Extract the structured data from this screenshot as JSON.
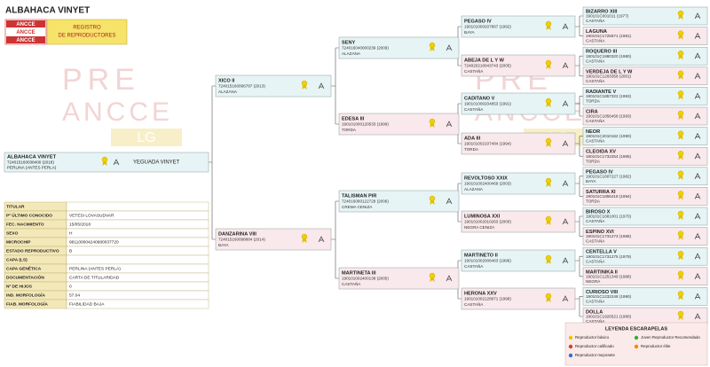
{
  "header": {
    "title": "ALBAHACA VINYET",
    "logo_lines": [
      "ANCCE",
      "ANCCE",
      "ANCCE"
    ],
    "registry_lines": [
      "REGISTRO",
      "DE REPRODUCTORES"
    ]
  },
  "watermark": {
    "line1": "PRE",
    "line2": "ANCCE",
    "line3": "LG"
  },
  "pedigree": {
    "subject": {
      "name": "ALBAHACA VINYET",
      "code": "724015160038400 (2018)",
      "color": "PERLINA (ANTES PERLA)",
      "breeder": "YEGUADA VINYET"
    },
    "gen1": [
      {
        "name": "XICO II",
        "code": "724015160096787 (2013)",
        "color": "ALAZANA"
      },
      {
        "name": "DANZARINA VIII",
        "code": "724015160098884 (2014)",
        "color": "BAYA"
      }
    ],
    "gen2": [
      {
        "name": "SENY",
        "code": "724016040000239 (2009)",
        "color": "ALAZANA"
      },
      {
        "name": "EDESA III",
        "code": "190101000120533 (1999)",
        "color": "TORDA"
      },
      {
        "name": "TALISMAN PIR",
        "code": "724016080122728 (2006)",
        "color": "CREMA CENIZA"
      },
      {
        "name": "MARTINETA III",
        "code": "190101002400138 (2005)",
        "color": "CASTAÑA"
      }
    ],
    "gen3": [
      {
        "name": "PEGASO IV",
        "code": "190101000207867 (1992)",
        "color": "BAYA"
      },
      {
        "name": "ABEJA DE L Y W",
        "code": "724020210043743 (2005)",
        "color": "CASTAÑA"
      },
      {
        "name": "CADITANO V",
        "code": "190101000204853 (1991)",
        "color": "CASTAÑA"
      },
      {
        "name": "ADA III",
        "code": "190101002107484 (1994)",
        "color": "TORDA"
      },
      {
        "name": "REVOLTOSO XXIX",
        "code": "190101002400469 (2003)",
        "color": "ALAZANA"
      },
      {
        "name": "LUMINOSA XXI",
        "code": "190101002010263 (2000)",
        "color": "NEGRA CENIZA"
      },
      {
        "name": "MARTINETO II",
        "code": "190101002006463 (1996)",
        "color": "CASTAÑA"
      },
      {
        "name": "HERONA XXV",
        "code": "190101002128971 (1998)",
        "color": "CASTAÑA"
      }
    ],
    "gen4": [
      {
        "name": "BIZARRO XIII",
        "code": "190101C001011 (1977)",
        "color": "CASTAÑA"
      },
      {
        "name": "LAGUNA",
        "code": "190101C1725571 (1981)",
        "color": "CASTAÑA"
      },
      {
        "name": "ROQUERO III",
        "code": "190101C1880320 (1980)",
        "color": "CASTAÑA"
      },
      {
        "name": "VERDEJA DE L Y W",
        "code": "190101C1203358 (2001)",
        "color": "CASTAÑA"
      },
      {
        "name": "RADIANTE V",
        "code": "190101C1857322 (1993)",
        "color": "TORDA"
      },
      {
        "name": "CIRA",
        "code": "190101C1856458 (1993)",
        "color": "CASTAÑA"
      },
      {
        "name": "NEOR",
        "code": "190101C2010162 (1990)",
        "color": "CASTAÑA"
      },
      {
        "name": "CLEOIDA XV",
        "code": "190101C1732254 (1985)",
        "color": "TORDA"
      },
      {
        "name": "PEGASO IV",
        "code": "190101C1607227 (1982)",
        "color": "BAYA"
      },
      {
        "name": "SATURRA XI",
        "code": "190101C1856418 (1994)",
        "color": "TORDA"
      },
      {
        "name": "BIROSO X",
        "code": "190101C1681001 (1970)",
        "color": "CASTAÑA"
      },
      {
        "name": "ESPINO XVI",
        "code": "190101C1731273 (1986)",
        "color": "CASTAÑA"
      },
      {
        "name": "CENTELLA V",
        "code": "190101C1731275 (1979)",
        "color": "CASTAÑA"
      },
      {
        "name": "MARTINIKA II",
        "code": "190101C1251349 (1988)",
        "color": "NEGRA"
      },
      {
        "name": "CURIOSO VIII",
        "code": "190101C1232248 (1990)",
        "color": "CASTAÑA"
      },
      {
        "name": "DOLLA",
        "code": "190101C1926521 (1980)",
        "color": "CASTAÑA"
      }
    ]
  },
  "info_table": {
    "rows": [
      {
        "label": "TITULAR"
      },
      {
        "label": "Pº ÚLTIMO CONOCIDO",
        "value": "VETESI LOVASUDVAR"
      },
      {
        "label": "FEC. NACIMIENTO",
        "value": "15/05/2018"
      },
      {
        "label": "SEXO",
        "value": "H"
      },
      {
        "label": "MICROCHIP",
        "value": "981100004240980037720"
      },
      {
        "label": "ESTADO REPRODUCTIVO",
        "value": "B"
      },
      {
        "label": "CAPA (LS)"
      },
      {
        "label": "CAPA GENÉTICA",
        "value": "PERLINA (ANTES PERLA)"
      },
      {
        "label": "DOCUMENTACIÓN",
        "value": "CARTA DE TITULARIDAD"
      },
      {
        "label": "Nº DE HIJOS",
        "value": "0"
      },
      {
        "label": "IND. MORFOLOGÍA",
        "value": "57.04"
      },
      {
        "label": "FIAB. MORFOLOGÍA",
        "value": "FIABILIDAD BAJA"
      }
    ]
  },
  "legend": {
    "title": "LEYENDA ESCARAPELAS",
    "items": [
      {
        "label": "Reproductor básico",
        "color": "#e8c400"
      },
      {
        "label": "Joven Reproductor Recomendado",
        "color": "#3aa845"
      },
      {
        "label": "Reproductor calificado",
        "color": "#d83a2e"
      },
      {
        "label": "Reproductor élite",
        "color": "#f08a00"
      },
      {
        "label": "Reproductor mejorante",
        "color": "#2f6fd0"
      }
    ]
  }
}
